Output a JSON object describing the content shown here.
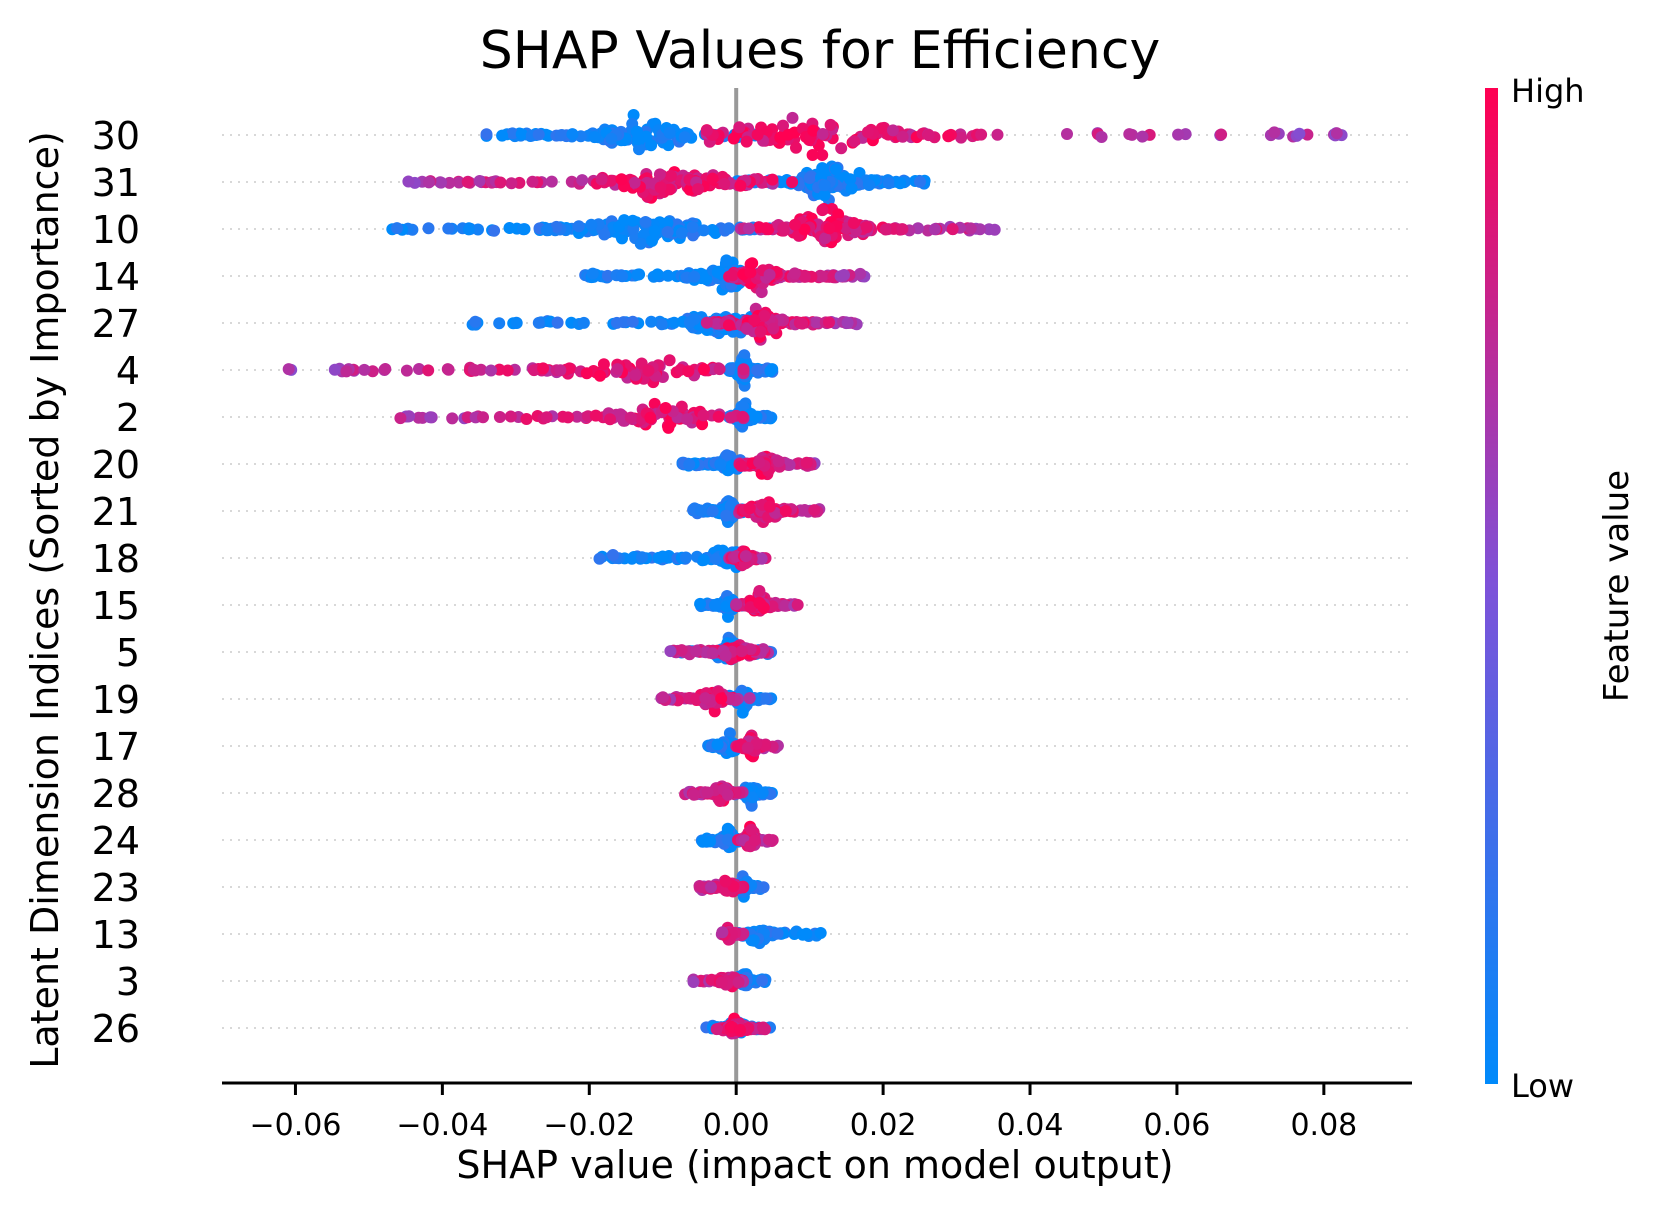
{
  "chart_data": {
    "type": "scatter",
    "subtype": "shap-beeswarm",
    "title": "SHAP Values for Efficiency",
    "xlabel": "SHAP value (impact on model output)",
    "ylabel": "Latent Dimension Indices (Sorted by Importance)",
    "xlim": [
      -0.07,
      0.092
    ],
    "xticks": [
      -0.06,
      -0.04,
      -0.02,
      0.0,
      0.02,
      0.04,
      0.06,
      0.08
    ],
    "xtick_labels": [
      "−0.06",
      "−0.04",
      "−0.02",
      "0.00",
      "0.02",
      "0.04",
      "0.06",
      "0.08"
    ],
    "zero_line": 0.0,
    "colorbar": {
      "label": "Feature value",
      "high_label": "High",
      "low_label": "Low",
      "low_color": "#008afb",
      "mid_color": "#7d52d9",
      "high_color": "#ff0052"
    },
    "features": [
      {
        "name": "30",
        "low_min": -0.034,
        "low_max": 0.004,
        "low_center": -0.013,
        "high_min": -0.004,
        "high_max": 0.083,
        "high_center": 0.01,
        "density": 1.0
      },
      {
        "name": "31",
        "low_min": -0.004,
        "low_max": 0.026,
        "low_center": 0.013,
        "high_min": -0.045,
        "high_max": 0.008,
        "high_center": -0.008,
        "density": 1.0
      },
      {
        "name": "10",
        "low_min": -0.047,
        "low_max": 0.005,
        "low_center": -0.013,
        "high_min": 0.0,
        "high_max": 0.036,
        "high_center": 0.012,
        "density": 1.0
      },
      {
        "name": "14",
        "low_min": -0.021,
        "low_max": 0.005,
        "low_center": -0.001,
        "high_min": -0.002,
        "high_max": 0.018,
        "high_center": 0.003,
        "density": 0.8
      },
      {
        "name": "27",
        "low_min": -0.036,
        "low_max": 0.002,
        "low_center": -0.002,
        "high_min": -0.004,
        "high_max": 0.018,
        "high_center": 0.003,
        "density": 0.75
      },
      {
        "name": "4",
        "low_min": -0.001,
        "low_max": 0.005,
        "low_center": 0.001,
        "high_min": -0.062,
        "high_max": 0.001,
        "high_center": -0.012,
        "density": 0.75
      },
      {
        "name": "2",
        "low_min": -0.001,
        "low_max": 0.005,
        "low_center": 0.001,
        "high_min": -0.046,
        "high_max": 0.001,
        "high_center": -0.01,
        "density": 0.75
      },
      {
        "name": "20",
        "low_min": -0.008,
        "low_max": 0.002,
        "low_center": -0.001,
        "high_min": 0.0,
        "high_max": 0.011,
        "high_center": 0.004,
        "density": 0.65
      },
      {
        "name": "21",
        "low_min": -0.006,
        "low_max": 0.001,
        "low_center": -0.001,
        "high_min": 0.0,
        "high_max": 0.012,
        "high_center": 0.004,
        "density": 0.65
      },
      {
        "name": "18",
        "low_min": -0.02,
        "low_max": 0.0,
        "low_center": -0.001,
        "high_min": -0.001,
        "high_max": 0.004,
        "high_center": 0.001,
        "density": 0.6
      },
      {
        "name": "15",
        "low_min": -0.005,
        "low_max": 0.001,
        "low_center": -0.001,
        "high_min": 0.0,
        "high_max": 0.009,
        "high_center": 0.003,
        "density": 0.6
      },
      {
        "name": "5",
        "low_min": -0.008,
        "low_max": 0.005,
        "low_center": -0.001,
        "high_min": -0.009,
        "high_max": 0.005,
        "high_center": 0.0,
        "density": 0.6
      },
      {
        "name": "19",
        "low_min": -0.001,
        "low_max": 0.005,
        "low_center": 0.001,
        "high_min": -0.011,
        "high_max": 0.002,
        "high_center": -0.003,
        "density": 0.6
      },
      {
        "name": "17",
        "low_min": -0.004,
        "low_max": 0.002,
        "low_center": -0.001,
        "high_min": 0.0,
        "high_max": 0.006,
        "high_center": 0.002,
        "density": 0.55
      },
      {
        "name": "28",
        "low_min": -0.001,
        "low_max": 0.005,
        "low_center": 0.002,
        "high_min": -0.007,
        "high_max": 0.001,
        "high_center": -0.002,
        "density": 0.55
      },
      {
        "name": "24",
        "low_min": -0.005,
        "low_max": 0.001,
        "low_center": -0.001,
        "high_min": 0.0,
        "high_max": 0.005,
        "high_center": 0.002,
        "density": 0.55
      },
      {
        "name": "23",
        "low_min": -0.001,
        "low_max": 0.004,
        "low_center": 0.001,
        "high_min": -0.005,
        "high_max": 0.001,
        "high_center": -0.001,
        "density": 0.55
      },
      {
        "name": "13",
        "low_min": 0.0,
        "low_max": 0.012,
        "low_center": 0.003,
        "high_min": -0.002,
        "high_max": 0.001,
        "high_center": -0.001,
        "density": 0.45
      },
      {
        "name": "3",
        "low_min": -0.001,
        "low_max": 0.004,
        "low_center": 0.001,
        "high_min": -0.006,
        "high_max": 0.001,
        "high_center": -0.001,
        "density": 0.5
      },
      {
        "name": "26",
        "low_min": -0.005,
        "low_max": 0.005,
        "low_center": 0.0,
        "high_min": -0.003,
        "high_max": 0.004,
        "high_center": 0.0,
        "density": 0.5
      }
    ]
  }
}
